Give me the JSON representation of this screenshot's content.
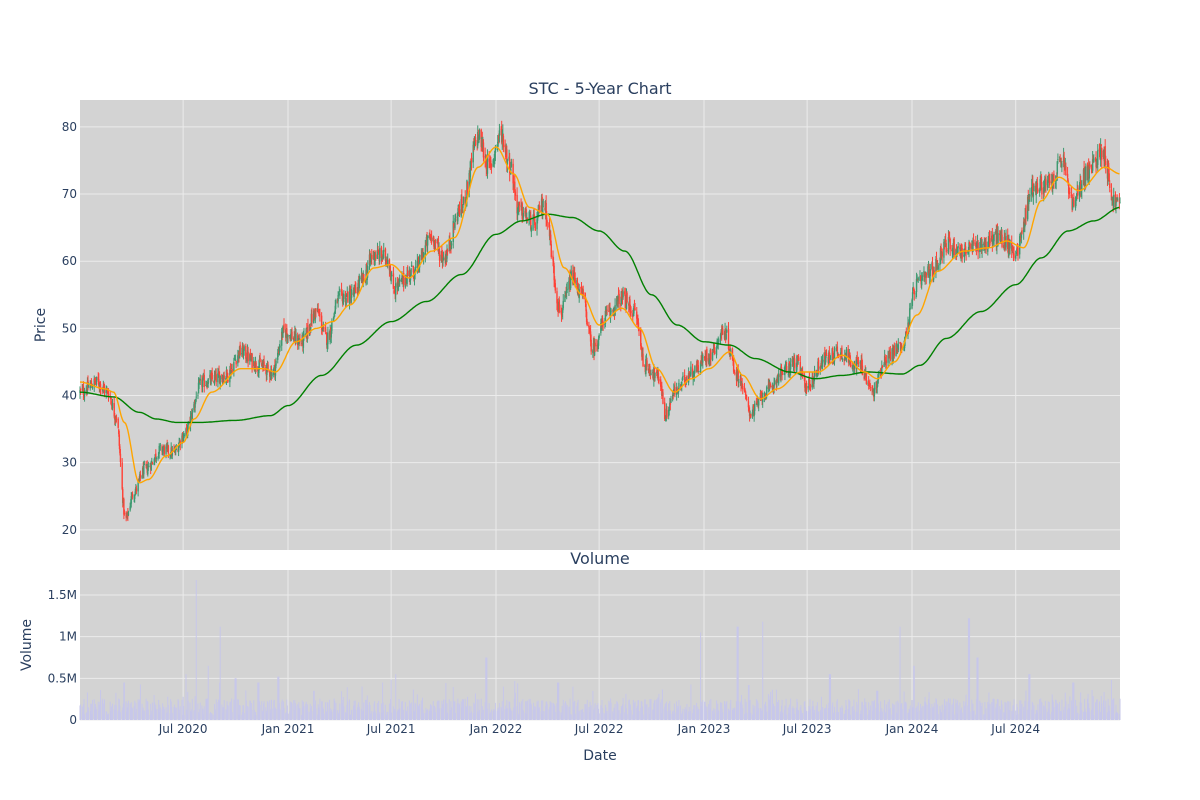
{
  "chart_data": {
    "type": "candlestick",
    "title": "STC - 5-Year Chart",
    "colors": {
      "background": "#d3d3d3",
      "grid": "#ebebeb",
      "up": "#3d9970",
      "down": "#ff4136",
      "ma_short": "#ffa500",
      "ma_long": "#008000",
      "volume_bar": "#c7c7ea",
      "text": "#2a3f5f"
    },
    "x_range": [
      "2020-01-02",
      "2024-12-31"
    ],
    "x_tick_labels": [
      "Jul 2020",
      "Jan 2021",
      "Jul 2021",
      "Jan 2022",
      "Jul 2022",
      "Jan 2023",
      "Jul 2023",
      "Jan 2024",
      "Jul 2024"
    ],
    "x_tick_dates": [
      "2020-07-01",
      "2021-01-01",
      "2021-07-01",
      "2022-01-01",
      "2022-07-01",
      "2023-01-01",
      "2023-07-01",
      "2024-01-01",
      "2024-07-01"
    ],
    "xlabel": "Date",
    "price_panel": {
      "ylabel": "Price",
      "ylim": [
        17,
        84
      ],
      "y_ticks": [
        20,
        30,
        40,
        50,
        60,
        70,
        80
      ],
      "grid": true
    },
    "volume_panel": {
      "title": "Volume",
      "ylabel": "Volume",
      "ylim": [
        0,
        1.8
      ],
      "y_ticks": [
        0,
        0.5,
        1,
        1.5
      ],
      "y_tick_labels": [
        "0",
        "0.5M",
        "1M",
        "1.5M"
      ],
      "grid": true
    },
    "price_anchors": [
      [
        "2020-01-02",
        40.5
      ],
      [
        "2020-02-01",
        42.0
      ],
      [
        "2020-02-20",
        40.5
      ],
      [
        "2020-03-05",
        37.0
      ],
      [
        "2020-03-22",
        21.5
      ],
      [
        "2020-04-05",
        25.5
      ],
      [
        "2020-04-25",
        29.0
      ],
      [
        "2020-05-25",
        32.0
      ],
      [
        "2020-06-15",
        31.5
      ],
      [
        "2020-07-01",
        34.0
      ],
      [
        "2020-08-05",
        42.0
      ],
      [
        "2020-09-15",
        43.0
      ],
      [
        "2020-10-10",
        46.5
      ],
      [
        "2020-11-10",
        44.5
      ],
      [
        "2020-12-05",
        43.5
      ],
      [
        "2020-12-25",
        49.5
      ],
      [
        "2021-01-25",
        48.0
      ],
      [
        "2021-02-20",
        52.5
      ],
      [
        "2021-03-10",
        48.5
      ],
      [
        "2021-04-01",
        54.5
      ],
      [
        "2021-04-25",
        55.0
      ],
      [
        "2021-05-10",
        57.0
      ],
      [
        "2021-06-01",
        61.0
      ],
      [
        "2021-06-25",
        60.5
      ],
      [
        "2021-07-05",
        56.0
      ],
      [
        "2021-08-10",
        58.5
      ],
      [
        "2021-09-10",
        63.5
      ],
      [
        "2021-10-01",
        60.5
      ],
      [
        "2021-11-01",
        68.0
      ],
      [
        "2021-12-01",
        78.5
      ],
      [
        "2021-12-20",
        74.0
      ],
      [
        "2022-01-10",
        79.0
      ],
      [
        "2022-01-25",
        74.5
      ],
      [
        "2022-02-10",
        67.5
      ],
      [
        "2022-03-10",
        65.5
      ],
      [
        "2022-03-25",
        68.5
      ],
      [
        "2022-04-25",
        52.5
      ],
      [
        "2022-05-15",
        57.5
      ],
      [
        "2022-06-01",
        55.0
      ],
      [
        "2022-06-20",
        47.0
      ],
      [
        "2022-07-15",
        52.0
      ],
      [
        "2022-08-10",
        54.5
      ],
      [
        "2022-09-01",
        52.5
      ],
      [
        "2022-09-20",
        44.5
      ],
      [
        "2022-10-15",
        42.5
      ],
      [
        "2022-10-25",
        37.0
      ],
      [
        "2022-11-10",
        40.5
      ],
      [
        "2022-12-10",
        43.5
      ],
      [
        "2023-01-10",
        46.0
      ],
      [
        "2023-02-05",
        49.5
      ],
      [
        "2023-03-01",
        43.0
      ],
      [
        "2023-03-25",
        37.5
      ],
      [
        "2023-04-20",
        40.5
      ],
      [
        "2023-05-20",
        43.5
      ],
      [
        "2023-06-10",
        45.0
      ],
      [
        "2023-07-01",
        41.5
      ],
      [
        "2023-08-01",
        45.5
      ],
      [
        "2023-08-25",
        46.5
      ],
      [
        "2023-10-01",
        44.5
      ],
      [
        "2023-10-25",
        40.5
      ],
      [
        "2023-11-15",
        45.5
      ],
      [
        "2023-12-15",
        47.5
      ],
      [
        "2024-01-10",
        56.5
      ],
      [
        "2024-02-05",
        58.5
      ],
      [
        "2024-03-01",
        62.5
      ],
      [
        "2024-04-01",
        61.5
      ],
      [
        "2024-05-01",
        62.5
      ],
      [
        "2024-06-01",
        63.5
      ],
      [
        "2024-07-01",
        61.5
      ],
      [
        "2024-08-01",
        71.0
      ],
      [
        "2024-09-01",
        71.5
      ],
      [
        "2024-09-20",
        75.0
      ],
      [
        "2024-10-10",
        68.5
      ],
      [
        "2024-11-01",
        73.0
      ],
      [
        "2024-12-01",
        76.5
      ],
      [
        "2024-12-20",
        69.0
      ],
      [
        "2024-12-31",
        68.5
      ]
    ],
    "ma_short_anchors": [
      [
        "2020-01-02",
        42.0
      ],
      [
        "2020-02-15",
        41.0
      ],
      [
        "2020-03-01",
        40.5
      ],
      [
        "2020-03-20",
        36.0
      ],
      [
        "2020-04-15",
        27.0
      ],
      [
        "2020-05-01",
        27.5
      ],
      [
        "2020-06-01",
        31.0
      ],
      [
        "2020-07-01",
        33.0
      ],
      [
        "2020-07-20",
        36.5
      ],
      [
        "2020-08-20",
        40.5
      ],
      [
        "2020-10-10",
        44.0
      ],
      [
        "2020-11-20",
        44.0
      ],
      [
        "2020-12-10",
        43.5
      ],
      [
        "2021-01-15",
        48.0
      ],
      [
        "2021-02-20",
        50.0
      ],
      [
        "2021-03-20",
        51.0
      ],
      [
        "2021-04-20",
        53.5
      ],
      [
        "2021-06-01",
        59.0
      ],
      [
        "2021-07-01",
        59.5
      ],
      [
        "2021-08-01",
        57.5
      ],
      [
        "2021-09-10",
        61.5
      ],
      [
        "2021-10-20",
        63.5
      ],
      [
        "2021-12-01",
        74.0
      ],
      [
        "2022-01-01",
        77.0
      ],
      [
        "2022-02-01",
        73.0
      ],
      [
        "2022-03-01",
        68.0
      ],
      [
        "2022-04-01",
        67.0
      ],
      [
        "2022-05-01",
        59.0
      ],
      [
        "2022-06-01",
        55.0
      ],
      [
        "2022-07-01",
        50.5
      ],
      [
        "2022-08-10",
        53.0
      ],
      [
        "2022-09-10",
        50.0
      ],
      [
        "2022-10-10",
        44.0
      ],
      [
        "2022-11-10",
        40.5
      ],
      [
        "2022-12-10",
        42.5
      ],
      [
        "2023-01-10",
        44.0
      ],
      [
        "2023-02-15",
        46.5
      ],
      [
        "2023-03-10",
        43.0
      ],
      [
        "2023-04-10",
        39.5
      ],
      [
        "2023-05-10",
        41.0
      ],
      [
        "2023-06-20",
        43.5
      ],
      [
        "2023-07-20",
        43.5
      ],
      [
        "2023-09-01",
        46.0
      ],
      [
        "2023-10-10",
        43.5
      ],
      [
        "2023-11-01",
        42.5
      ],
      [
        "2023-12-01",
        45.0
      ],
      [
        "2024-01-10",
        52.0
      ],
      [
        "2024-02-15",
        58.5
      ],
      [
        "2024-04-01",
        61.5
      ],
      [
        "2024-05-15",
        62.0
      ],
      [
        "2024-06-15",
        63.0
      ],
      [
        "2024-07-15",
        62.0
      ],
      [
        "2024-08-15",
        69.0
      ],
      [
        "2024-09-15",
        72.5
      ],
      [
        "2024-10-20",
        70.5
      ],
      [
        "2024-12-05",
        74.0
      ],
      [
        "2024-12-31",
        73.0
      ]
    ],
    "ma_long_anchors": [
      [
        "2020-01-02",
        40.5
      ],
      [
        "2020-03-01",
        39.8
      ],
      [
        "2020-04-15",
        37.5
      ],
      [
        "2020-05-15",
        36.5
      ],
      [
        "2020-06-20",
        36.0
      ],
      [
        "2020-08-01",
        36.0
      ],
      [
        "2020-10-01",
        36.3
      ],
      [
        "2020-12-01",
        37.0
      ],
      [
        "2021-01-01",
        38.5
      ],
      [
        "2021-03-01",
        43.0
      ],
      [
        "2021-05-01",
        47.5
      ],
      [
        "2021-07-01",
        51.0
      ],
      [
        "2021-09-01",
        54.0
      ],
      [
        "2021-11-01",
        58.0
      ],
      [
        "2022-01-01",
        64.0
      ],
      [
        "2022-02-15",
        66.0
      ],
      [
        "2022-04-01",
        67.0
      ],
      [
        "2022-05-15",
        66.5
      ],
      [
        "2022-07-01",
        64.5
      ],
      [
        "2022-08-15",
        61.5
      ],
      [
        "2022-10-01",
        55.0
      ],
      [
        "2022-11-15",
        50.5
      ],
      [
        "2023-01-01",
        48.0
      ],
      [
        "2023-02-15",
        47.5
      ],
      [
        "2023-04-01",
        45.5
      ],
      [
        "2023-06-01",
        43.5
      ],
      [
        "2023-07-15",
        42.5
      ],
      [
        "2023-09-01",
        43.0
      ],
      [
        "2023-10-15",
        43.5
      ],
      [
        "2023-12-15",
        43.2
      ],
      [
        "2024-01-15",
        44.5
      ],
      [
        "2024-03-01",
        48.5
      ],
      [
        "2024-05-01",
        52.5
      ],
      [
        "2024-07-01",
        56.5
      ],
      [
        "2024-08-15",
        60.5
      ],
      [
        "2024-10-01",
        64.5
      ],
      [
        "2024-11-15",
        66.0
      ],
      [
        "2024-12-31",
        68.0
      ]
    ],
    "volume_spikes": [
      [
        "2020-03-20",
        0.45
      ],
      [
        "2020-05-10",
        0.3
      ],
      [
        "2020-07-05",
        0.55
      ],
      [
        "2020-07-25",
        1.68
      ],
      [
        "2020-08-15",
        0.65
      ],
      [
        "2020-09-05",
        1.12
      ],
      [
        "2020-10-01",
        0.5
      ],
      [
        "2020-11-10",
        0.45
      ],
      [
        "2020-12-15",
        0.52
      ],
      [
        "2021-02-15",
        0.35
      ],
      [
        "2021-07-10",
        0.55
      ],
      [
        "2021-12-15",
        0.75
      ],
      [
        "2022-01-15",
        0.4
      ],
      [
        "2022-04-20",
        0.45
      ],
      [
        "2022-05-15",
        0.4
      ],
      [
        "2022-12-25",
        1.05
      ],
      [
        "2023-03-01",
        1.12
      ],
      [
        "2023-03-20",
        0.42
      ],
      [
        "2023-04-15",
        1.18
      ],
      [
        "2023-08-10",
        0.55
      ],
      [
        "2023-11-01",
        0.35
      ],
      [
        "2023-12-10",
        1.12
      ],
      [
        "2024-01-05",
        0.65
      ],
      [
        "2024-04-10",
        1.22
      ],
      [
        "2024-04-25",
        0.75
      ],
      [
        "2024-07-25",
        0.55
      ],
      [
        "2024-10-10",
        0.45
      ],
      [
        "2024-12-15",
        0.48
      ]
    ]
  }
}
